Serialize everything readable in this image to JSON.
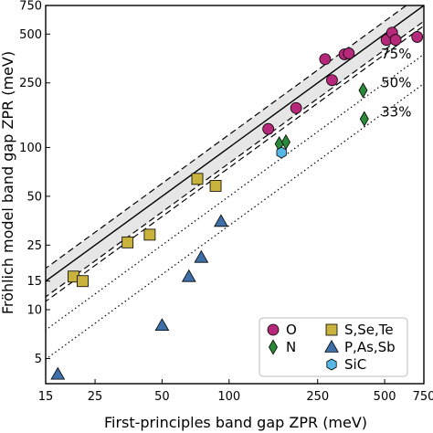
{
  "chart_data": {
    "type": "scatter",
    "xlabel": "First-principles band gap ZPR (meV)",
    "ylabel": "Fröhlich model band gap ZPR (meV)",
    "xscale": "log",
    "yscale": "log",
    "xlim": [
      15,
      750
    ],
    "ylim": [
      3.5,
      750
    ],
    "xticks": [
      {
        "value": 15,
        "label": "15"
      },
      {
        "value": 25,
        "label": "25"
      },
      {
        "value": 50,
        "label": "50"
      },
      {
        "value": 100,
        "label": "100"
      },
      {
        "value": 250,
        "label": "250"
      },
      {
        "value": 500,
        "label": "500"
      },
      {
        "value": 750,
        "label": "750"
      }
    ],
    "yticks": [
      {
        "value": 5,
        "label": "5"
      },
      {
        "value": 10,
        "label": "10"
      },
      {
        "value": 15,
        "label": "15"
      },
      {
        "value": 25,
        "label": "25"
      },
      {
        "value": 50,
        "label": "50"
      },
      {
        "value": 100,
        "label": "100"
      },
      {
        "value": 250,
        "label": "250"
      },
      {
        "value": 500,
        "label": "500"
      },
      {
        "value": 750,
        "label": "750"
      }
    ],
    "grid": false,
    "shaded_band": {
      "lower_ratio": 0.8,
      "upper_ratio": 1.2,
      "color": "#e6e6e6"
    },
    "reference_lines": [
      {
        "ratio": 1.0,
        "style": "solid",
        "label": ""
      },
      {
        "ratio": 1.2,
        "style": "dashed",
        "label": ""
      },
      {
        "ratio": 0.8,
        "style": "dashed",
        "label": ""
      },
      {
        "ratio": 0.75,
        "style": "dashed",
        "label": "75%"
      },
      {
        "ratio": 0.5,
        "style": "dotted",
        "label": "50%"
      },
      {
        "ratio": 0.33,
        "style": "dotted",
        "label": "33%"
      }
    ],
    "legend": {
      "placement": "lower-right",
      "entries": [
        {
          "series": "O",
          "label": "O"
        },
        {
          "series": "N",
          "label": "N"
        },
        {
          "series": "S",
          "label": "S,Se,Te"
        },
        {
          "series": "P",
          "label": "P,As,Sb"
        },
        {
          "series": "SiC",
          "label": "SiC"
        }
      ]
    },
    "series": [
      {
        "key": "O",
        "name": "O",
        "marker": "circle",
        "color": "#b5287a",
        "points": [
          [
            150,
            130
          ],
          [
            200,
            175
          ],
          [
            270,
            350
          ],
          [
            290,
            260
          ],
          [
            330,
            375
          ],
          [
            345,
            380
          ],
          [
            510,
            460
          ],
          [
            540,
            510
          ],
          [
            560,
            460
          ],
          [
            700,
            480
          ]
        ]
      },
      {
        "key": "N",
        "name": "N",
        "marker": "diamond",
        "color": "#2a8a3a",
        "points": [
          [
            168,
            105
          ],
          [
            180,
            108
          ],
          [
            400,
            225
          ],
          [
            405,
            150
          ]
        ]
      },
      {
        "key": "S",
        "name": "S,Se,Te",
        "marker": "square",
        "color": "#c9b33d",
        "points": [
          [
            20,
            16
          ],
          [
            22,
            15
          ],
          [
            35,
            26
          ],
          [
            44,
            29
          ],
          [
            72,
            64
          ],
          [
            87,
            58
          ]
        ]
      },
      {
        "key": "P",
        "name": "P,As,Sb",
        "marker": "triangle",
        "color": "#3f6fa8",
        "points": [
          [
            17,
            4.0
          ],
          [
            50,
            8.0
          ],
          [
            66,
            16
          ],
          [
            75,
            21
          ],
          [
            92,
            35
          ]
        ]
      },
      {
        "key": "SiC",
        "name": "SiC",
        "marker": "hexagon",
        "color": "#57b8e6",
        "points": [
          [
            172,
            93
          ]
        ]
      }
    ]
  }
}
